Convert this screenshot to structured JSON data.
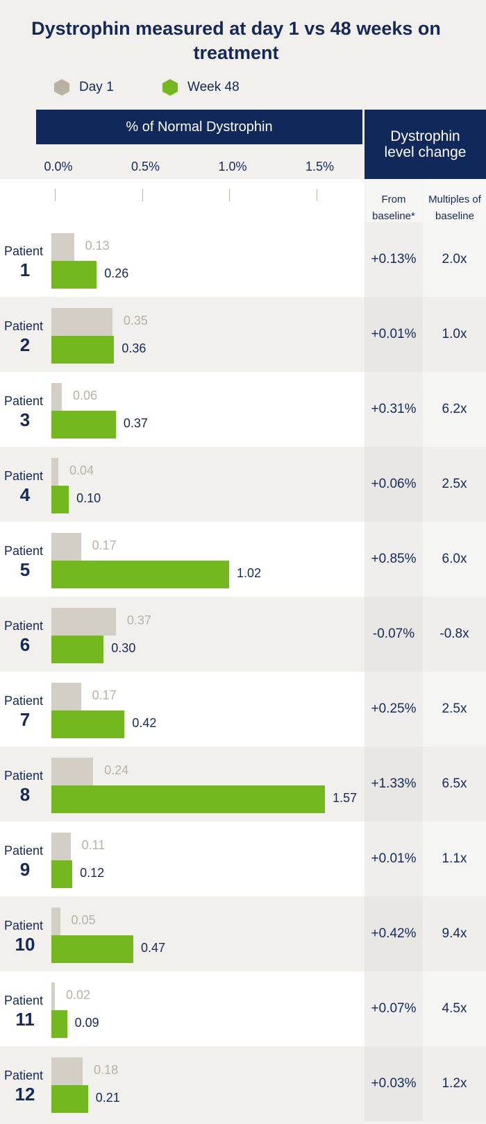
{
  "title": "Dystrophin measured at day 1 vs 48 weeks on treatment",
  "legend": {
    "day1": "Day 1",
    "week48": "Week 48"
  },
  "headers": {
    "chart": "% of Normal Dystrophin",
    "change": "Dystrophin level change",
    "from_baseline": "From baseline*",
    "multiples": "Multiples of baseline"
  },
  "patient_word": "Patient",
  "colors": {
    "navy": "#10295a",
    "day1": "#d3cec6",
    "week48": "#74b820",
    "day1_text": "#b9b1a5"
  },
  "chart_data": {
    "type": "bar",
    "orientation": "horizontal",
    "xlabel": "% of Normal Dystrophin",
    "xlim": [
      0,
      1.75
    ],
    "x_ticks": [
      "0.0%",
      "0.5%",
      "1.0%",
      "1.5%"
    ],
    "categories": [
      "Patient 1",
      "Patient 2",
      "Patient 3",
      "Patient 4",
      "Patient 5",
      "Patient 6",
      "Patient 7",
      "Patient 8",
      "Patient 9",
      "Patient 10",
      "Patient 11",
      "Patient 12"
    ],
    "series": [
      {
        "name": "Day 1",
        "values": [
          0.13,
          0.35,
          0.06,
          0.04,
          0.17,
          0.37,
          0.17,
          0.24,
          0.11,
          0.05,
          0.02,
          0.18
        ]
      },
      {
        "name": "Week 48",
        "values": [
          0.26,
          0.36,
          0.37,
          0.1,
          1.02,
          0.3,
          0.42,
          1.57,
          0.12,
          0.47,
          0.09,
          0.21
        ]
      }
    ]
  },
  "patients": [
    {
      "num": "1",
      "day1": "0.13",
      "week48": "0.26",
      "from_baseline": "+0.13%",
      "multiple": "2.0x"
    },
    {
      "num": "2",
      "day1": "0.35",
      "week48": "0.36",
      "from_baseline": "+0.01%",
      "multiple": "1.0x"
    },
    {
      "num": "3",
      "day1": "0.06",
      "week48": "0.37",
      "from_baseline": "+0.31%",
      "multiple": "6.2x"
    },
    {
      "num": "4",
      "day1": "0.04",
      "week48": "0.10",
      "from_baseline": "+0.06%",
      "multiple": "2.5x"
    },
    {
      "num": "5",
      "day1": "0.17",
      "week48": "1.02",
      "from_baseline": "+0.85%",
      "multiple": "6.0x"
    },
    {
      "num": "6",
      "day1": "0.37",
      "week48": "0.30",
      "from_baseline": "-0.07%",
      "multiple": "-0.8x"
    },
    {
      "num": "7",
      "day1": "0.17",
      "week48": "0.42",
      "from_baseline": "+0.25%",
      "multiple": "2.5x"
    },
    {
      "num": "8",
      "day1": "0.24",
      "week48": "1.57",
      "from_baseline": "+1.33%",
      "multiple": "6.5x"
    },
    {
      "num": "9",
      "day1": "0.11",
      "week48": "0.12",
      "from_baseline": "+0.01%",
      "multiple": "1.1x"
    },
    {
      "num": "10",
      "day1": "0.05",
      "week48": "0.47",
      "from_baseline": "+0.42%",
      "multiple": "9.4x"
    },
    {
      "num": "11",
      "day1": "0.02",
      "week48": "0.09",
      "from_baseline": "+0.07%",
      "multiple": "4.5x"
    },
    {
      "num": "12",
      "day1": "0.18",
      "week48": "0.21",
      "from_baseline": "+0.03%",
      "multiple": "1.2x"
    }
  ]
}
